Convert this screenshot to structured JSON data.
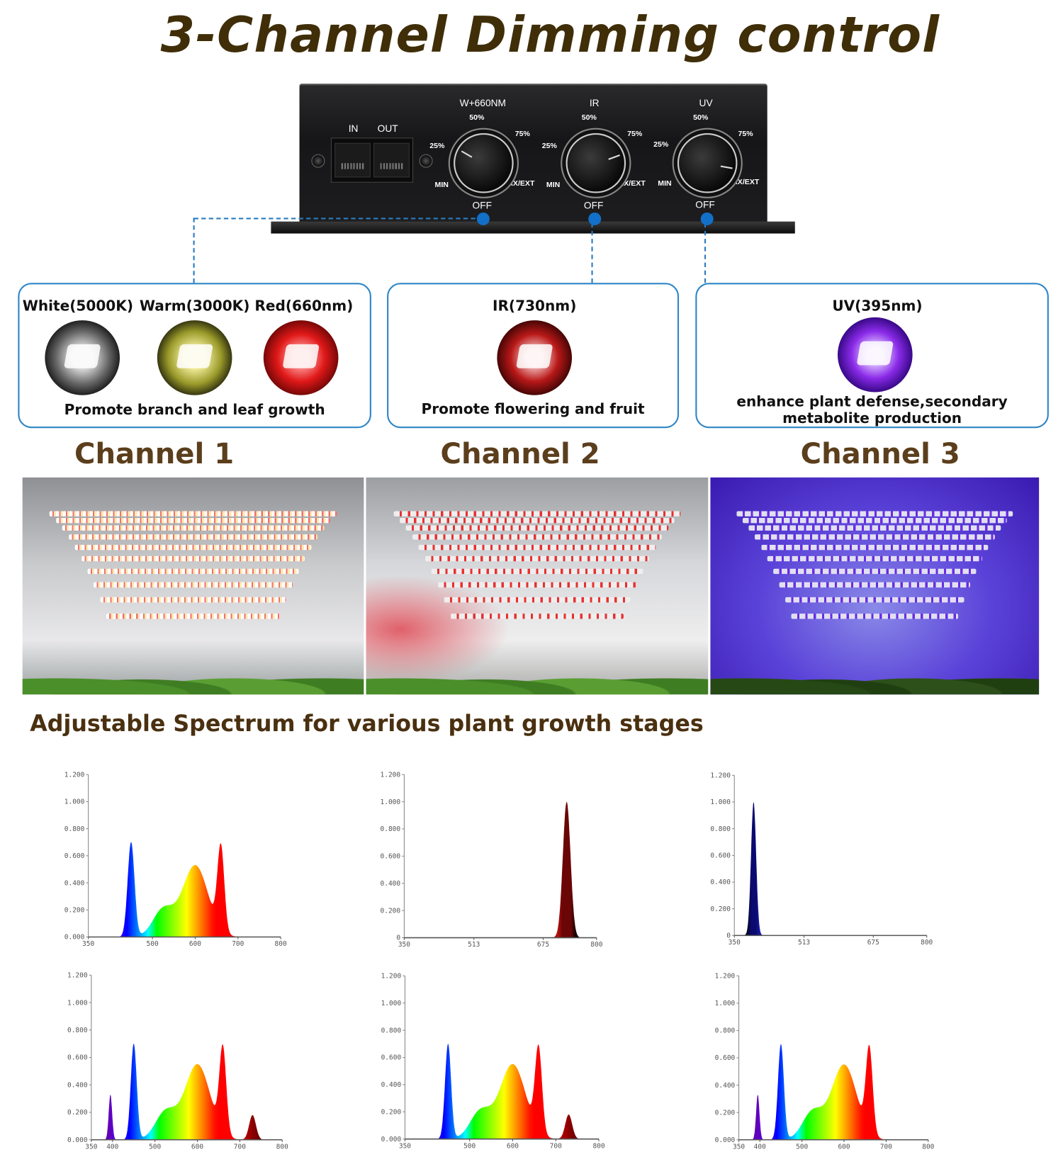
{
  "title": "3-Channel Dimming control",
  "controller": {
    "ports": [
      "IN",
      "OUT"
    ],
    "knobs": [
      {
        "label": "W+660NM",
        "min": "MIN",
        "p25": "25%",
        "p50": "50%",
        "p75": "75%",
        "max": "MAX/EXT",
        "off": "OFF",
        "level_percent": 20
      },
      {
        "label": "IR",
        "min": "MIN",
        "p25": "25%",
        "p50": "50%",
        "p75": "75%",
        "max": "MAX/EXT",
        "off": "OFF",
        "level_percent": 75
      },
      {
        "label": "UV",
        "min": "MIN",
        "p25": "25%",
        "p50": "50%",
        "p75": "75%",
        "max": "MAX/EXT",
        "off": "OFF",
        "level_percent": 90
      }
    ]
  },
  "channels": [
    {
      "name": "Channel 1",
      "leds": [
        "White(5000K)",
        "Warm(3000K)",
        "Red(660nm)"
      ],
      "description": "Promote branch and leaf growth"
    },
    {
      "name": "Channel 2",
      "leds": [
        "IR(730nm)"
      ],
      "description": "Promote flowering and fruit"
    },
    {
      "name": "Channel 3",
      "leds": [
        "UV(395nm)"
      ],
      "description": "enhance plant defense,secondary metabolite production"
    }
  ],
  "colors": {
    "title": "#3f2e08",
    "channel": "#5b3e1c",
    "accent": "#2f86c6"
  },
  "spectrum_title": "Adjustable Spectrum for various plant growth stages",
  "chart_data": [
    {
      "type": "area",
      "name": "channel-1",
      "palette": "spectrum",
      "xlim": [
        350,
        800
      ],
      "ylim": [
        0,
        1.2
      ],
      "xticks": [
        "350",
        "500",
        "600",
        "700",
        "800"
      ],
      "xtick_values": [
        350,
        500,
        600,
        700,
        800
      ],
      "yticks": [
        "0.000",
        "0.200",
        "0.400",
        "0.600",
        "0.800",
        "1.000",
        "1.200"
      ],
      "peaks": [
        [
          450,
          0.7,
          8
        ],
        [
          525,
          0.2,
          24
        ],
        [
          600,
          0.53,
          30
        ],
        [
          660,
          0.62,
          8
        ]
      ]
    },
    {
      "type": "area",
      "name": "channel-2",
      "palette": "ir",
      "xlim": [
        350,
        800
      ],
      "ylim": [
        0,
        1.2
      ],
      "xticks": [
        "350",
        "513",
        "675",
        "800"
      ],
      "xtick_values": [
        350,
        513,
        675,
        800
      ],
      "yticks": [
        "0",
        "0.200",
        "0.400",
        "0.600",
        "0.800",
        "1.000",
        "1.200"
      ],
      "peaks": [
        [
          730,
          1.0,
          9
        ]
      ]
    },
    {
      "type": "area",
      "name": "channel-3",
      "palette": "uv",
      "xlim": [
        350,
        800
      ],
      "ylim": [
        0,
        1.2
      ],
      "xticks": [
        "350",
        "513",
        "675",
        "800"
      ],
      "xtick_values": [
        350,
        513,
        675,
        800
      ],
      "yticks": [
        "0",
        "0.200",
        "0.400",
        "0.600",
        "0.800",
        "1.000",
        "1.200"
      ],
      "peaks": [
        [
          395,
          1.0,
          6
        ]
      ]
    },
    {
      "type": "area",
      "name": "all-channels",
      "palette": "spectrum",
      "xlim": [
        350,
        800
      ],
      "ylim": [
        0,
        1.2
      ],
      "xticks": [
        "350",
        "400",
        "500",
        "600",
        "700",
        "800"
      ],
      "xtick_values": [
        350,
        400,
        500,
        600,
        700,
        800
      ],
      "yticks": [
        "0.000",
        "0.200",
        "0.400",
        "0.600",
        "0.800",
        "1.000",
        "1.200"
      ],
      "peaks": [
        [
          395,
          0.33,
          4
        ],
        [
          450,
          0.7,
          7
        ],
        [
          525,
          0.2,
          24
        ],
        [
          600,
          0.55,
          30
        ],
        [
          660,
          0.62,
          8
        ],
        [
          730,
          0.18,
          8
        ]
      ]
    },
    {
      "type": "area",
      "name": "channel-1-2",
      "palette": "spectrum",
      "xlim": [
        350,
        800
      ],
      "ylim": [
        0,
        1.2
      ],
      "xticks": [
        "350",
        "500",
        "600",
        "700",
        "800"
      ],
      "xtick_values": [
        350,
        500,
        600,
        700,
        800
      ],
      "yticks": [
        "0.000",
        "0.200",
        "0.400",
        "0.600",
        "0.800",
        "1.000",
        "1.200"
      ],
      "peaks": [
        [
          450,
          0.7,
          7
        ],
        [
          525,
          0.2,
          24
        ],
        [
          600,
          0.55,
          30
        ],
        [
          660,
          0.62,
          8
        ],
        [
          730,
          0.18,
          8
        ]
      ]
    },
    {
      "type": "area",
      "name": "channel-1-3",
      "palette": "spectrum",
      "xlim": [
        350,
        800
      ],
      "ylim": [
        0,
        1.2
      ],
      "xticks": [
        "350",
        "400",
        "500",
        "600",
        "700",
        "800"
      ],
      "xtick_values": [
        350,
        400,
        500,
        600,
        700,
        800
      ],
      "yticks": [
        "0.000",
        "0.200",
        "0.400",
        "0.600",
        "0.800",
        "1.000",
        "1.200"
      ],
      "peaks": [
        [
          395,
          0.33,
          4
        ],
        [
          450,
          0.7,
          7
        ],
        [
          525,
          0.2,
          24
        ],
        [
          600,
          0.55,
          30
        ],
        [
          660,
          0.62,
          8
        ]
      ]
    }
  ]
}
